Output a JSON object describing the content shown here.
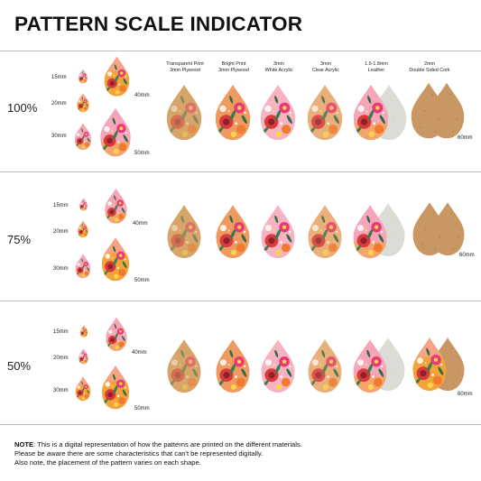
{
  "title": "PATTERN SCALE INDICATOR",
  "columns": [
    {
      "line1": "Transparent Print",
      "line2": "3mm Plywood"
    },
    {
      "line1": "Bright Print",
      "line2": "3mm Plywood"
    },
    {
      "line1": "3mm",
      "line2": "White Acrylic"
    },
    {
      "line1": "3mm",
      "line2": "Clear Acrylic"
    },
    {
      "line1": "1.6-1.8mm",
      "line2": "Leather"
    },
    {
      "line1": "2mm",
      "line2": "Double Sided Cork"
    }
  ],
  "scales": [
    {
      "label": "100%",
      "sizes": {
        "s15": "15mm",
        "s20": "20mm",
        "s30": "30mm",
        "s40": "40mm",
        "s50": "50mm",
        "s60": "60mm"
      }
    },
    {
      "label": "75%",
      "sizes": {
        "s15": "15mm",
        "s20": "20mm",
        "s30": "30mm",
        "s40": "40mm",
        "s50": "50mm",
        "s60": "60mm"
      }
    },
    {
      "label": "50%",
      "sizes": {
        "s15": "15mm",
        "s20": "20mm",
        "s30": "30mm",
        "s40": "40mm",
        "s50": "50mm",
        "s60": "60mm"
      }
    }
  ],
  "note": {
    "label": "NOTE",
    "line1": ": This is a digital representation of how the patterns are printed on the different materials.",
    "line2": "Please be aware there are some characteristics that can't be represented digitally.",
    "line3": "Also note, the placement of the pattern varies on each shape."
  },
  "colors": {
    "pattern_pink": "#f6a6b8",
    "pattern_orange": "#f3a33c",
    "wood": "#d7a46a",
    "cork": "#c99763",
    "leather": "#dcdcd6",
    "flower_red": "#d93a3a",
    "flower_magenta": "#e8397a",
    "leaf_green": "#3f7a4d"
  }
}
